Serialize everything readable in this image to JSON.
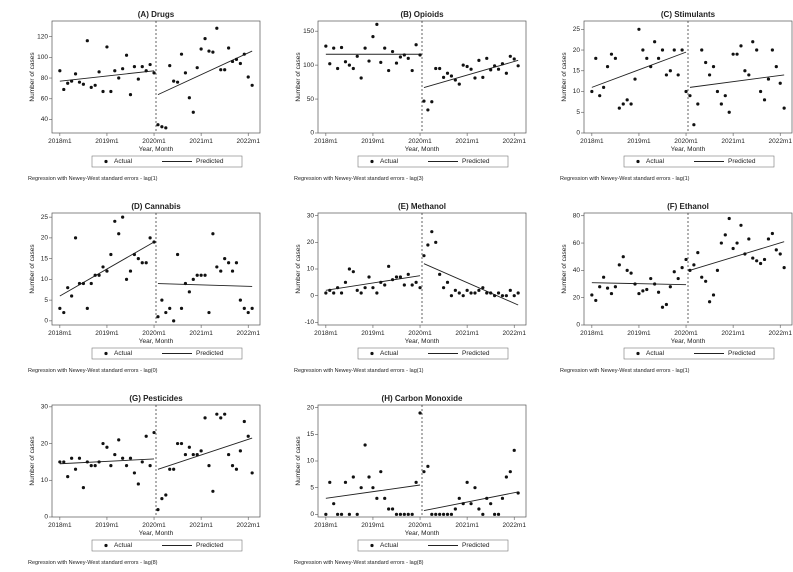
{
  "chart_data": [
    {
      "type": "scatter",
      "title": "(A) Drugs",
      "xlabel": "Year, Month",
      "ylabel": "Number of cases",
      "ylim": [
        27,
        135
      ],
      "yticks": [
        40,
        60,
        80,
        100,
        120
      ],
      "xticks": [
        "2018m1",
        "2019m1",
        "2020m1",
        "2021m1",
        "2022m1"
      ],
      "interruption_month": 25,
      "legend": {
        "actual": "Actual",
        "predicted": "Predicted"
      },
      "note": "Regression with Newey-West standard errors - lag(1)",
      "series": [
        {
          "name": "Actual",
          "values": [
            87,
            69,
            75,
            77,
            84,
            76,
            74,
            116,
            71,
            73,
            86,
            67,
            110,
            67,
            87,
            80,
            89,
            102,
            64,
            91,
            79,
            91,
            87,
            93,
            85,
            35,
            33,
            32,
            92,
            77,
            76,
            103,
            85,
            61,
            47,
            90,
            108,
            118,
            106,
            105,
            128,
            88,
            88,
            109,
            96,
            98,
            94,
            103,
            81,
            73
          ]
        },
        {
          "name": "Predicted",
          "segments": [
            {
              "x": [
                0,
                24
              ],
              "y": [
                77,
                87
              ]
            },
            {
              "x": [
                25,
                49
              ],
              "y": [
                64,
                106
              ]
            }
          ]
        }
      ]
    },
    {
      "type": "scatter",
      "title": "(B) Opioids",
      "xlabel": "Year, Month",
      "ylabel": "Number of cases",
      "ylim": [
        0,
        165
      ],
      "yticks": [
        0,
        50,
        100,
        150
      ],
      "xticks": [
        "2018m1",
        "2019m1",
        "2020m1",
        "2021m1",
        "2022m1"
      ],
      "interruption_month": 25,
      "legend": {
        "actual": "Actual",
        "predicted": "Predicted"
      },
      "note": "Regression with Newey-West standard errors - lag(3)",
      "series": [
        {
          "name": "Actual",
          "values": [
            128,
            102,
            125,
            95,
            126,
            105,
            100,
            95,
            113,
            81,
            125,
            106,
            142,
            160,
            104,
            125,
            92,
            120,
            103,
            112,
            115,
            110,
            92,
            130,
            115,
            47,
            34,
            46,
            95,
            95,
            82,
            88,
            84,
            78,
            72,
            100,
            98,
            94,
            81,
            107,
            82,
            110,
            93,
            99,
            94,
            102,
            88,
            113,
            109,
            99
          ]
        },
        {
          "name": "Predicted",
          "segments": [
            {
              "x": [
                0,
                24
              ],
              "y": [
                116,
                116
              ]
            },
            {
              "x": [
                25,
                49
              ],
              "y": [
                67,
                107
              ]
            }
          ]
        }
      ]
    },
    {
      "type": "scatter",
      "title": "(C) Stimulants",
      "xlabel": "Year, Month",
      "ylabel": "Number of cases",
      "ylim": [
        0,
        27
      ],
      "yticks": [
        0,
        5,
        10,
        15,
        20,
        25
      ],
      "xticks": [
        "2018m1",
        "2019m1",
        "2020m1",
        "2021m1",
        "2022m1"
      ],
      "interruption_month": 25,
      "legend": {
        "actual": "Actual",
        "predicted": "Predicted"
      },
      "note": "Regression with Newey-West standard errors - lag(1)",
      "series": [
        {
          "name": "Actual",
          "values": [
            10,
            18,
            9,
            11,
            16,
            19,
            18,
            6,
            7,
            8,
            7,
            13,
            25,
            20,
            18,
            16,
            22,
            18,
            20,
            14,
            15,
            20,
            14,
            20,
            10,
            9,
            2,
            7,
            20,
            17,
            14,
            16,
            10,
            7,
            9,
            5,
            19,
            19,
            21,
            15,
            14,
            22,
            20,
            10,
            8,
            13,
            20,
            16,
            12,
            6
          ]
        },
        {
          "name": "Predicted",
          "segments": [
            {
              "x": [
                0,
                24
              ],
              "y": [
                11,
                19.5
              ]
            },
            {
              "x": [
                25,
                49
              ],
              "y": [
                11,
                14
              ]
            }
          ]
        }
      ]
    },
    {
      "type": "scatter",
      "title": "(D) Cannabis",
      "xlabel": "Year, Month",
      "ylabel": "Number of cases",
      "ylim": [
        -1,
        26
      ],
      "yticks": [
        0,
        5,
        10,
        15,
        20,
        25
      ],
      "xticks": [
        "2018m1",
        "2019m1",
        "2020m1",
        "2021m1",
        "2022m1"
      ],
      "interruption_month": 25,
      "legend": {
        "actual": "Actual",
        "predicted": "Predicted"
      },
      "note": "Regression with Newey-West standard errors - lag(0)",
      "series": [
        {
          "name": "Actual",
          "values": [
            3,
            2,
            8,
            6,
            20,
            9,
            9,
            3,
            9,
            11,
            11,
            13,
            12,
            16,
            24,
            21,
            25,
            10,
            12,
            16,
            15,
            14,
            14,
            20,
            19,
            1,
            5,
            2,
            3,
            0,
            16,
            3,
            9,
            7,
            10,
            11,
            11,
            11,
            2,
            21,
            13,
            12,
            15,
            14,
            12,
            14,
            5,
            3,
            2,
            3
          ]
        },
        {
          "name": "Predicted",
          "segments": [
            {
              "x": [
                0,
                24
              ],
              "y": [
                6,
                19
              ]
            },
            {
              "x": [
                25,
                49
              ],
              "y": [
                9,
                8.3
              ]
            }
          ]
        }
      ]
    },
    {
      "type": "scatter",
      "title": "(E) Methanol",
      "xlabel": "Year, Month",
      "ylabel": "Number of cases",
      "ylim": [
        -11,
        31
      ],
      "yticks": [
        -10,
        0,
        10,
        20,
        30
      ],
      "xticks": [
        "2018m1",
        "2019m1",
        "2020m1",
        "2021m1",
        "2022m1"
      ],
      "interruption_month": 25,
      "legend": {
        "actual": "Actual",
        "predicted": "Predicted"
      },
      "note": "Regression with Newey-West standard errors - lag(1)",
      "series": [
        {
          "name": "Actual",
          "values": [
            1,
            2,
            1,
            3,
            1,
            5,
            10,
            9,
            2,
            1,
            3,
            7,
            3,
            1,
            5,
            4,
            11,
            6,
            7,
            7,
            4,
            8,
            4,
            5,
            3,
            15,
            19,
            24,
            20,
            8,
            3,
            5,
            0,
            2,
            1,
            0,
            2,
            1,
            1,
            2,
            3,
            1,
            1,
            0,
            1,
            0,
            0,
            2,
            0,
            1
          ]
        },
        {
          "name": "Predicted",
          "segments": [
            {
              "x": [
                0,
                24
              ],
              "y": [
                2,
                7.5
              ]
            },
            {
              "x": [
                25,
                49
              ],
              "y": [
                12,
                -3.5
              ]
            }
          ]
        }
      ]
    },
    {
      "type": "scatter",
      "title": "(F) Ethanol",
      "xlabel": "Year, Month",
      "ylabel": "Number of cases",
      "ylim": [
        0,
        82
      ],
      "yticks": [
        0,
        20,
        40,
        60,
        80
      ],
      "xticks": [
        "2018m1",
        "2019m1",
        "2020m1",
        "2021m1",
        "2022m1"
      ],
      "interruption_month": 25,
      "legend": {
        "actual": "Actual",
        "predicted": "Predicted"
      },
      "note": "Regression with Newey-West standard errors - lag(1)",
      "series": [
        {
          "name": "Actual",
          "values": [
            22,
            18,
            28,
            35,
            27,
            23,
            28,
            44,
            50,
            40,
            38,
            30,
            23,
            25,
            26,
            34,
            30,
            24,
            13,
            15,
            28,
            39,
            34,
            42,
            48,
            40,
            44,
            53,
            35,
            32,
            17,
            22,
            40,
            60,
            66,
            78,
            56,
            60,
            73,
            52,
            63,
            49,
            47,
            45,
            48,
            63,
            67,
            55,
            52,
            42
          ]
        },
        {
          "name": "Predicted",
          "segments": [
            {
              "x": [
                0,
                24
              ],
              "y": [
                31,
                29.5
              ]
            },
            {
              "x": [
                25,
                49
              ],
              "y": [
                40,
                61
              ]
            }
          ]
        }
      ]
    },
    {
      "type": "scatter",
      "title": "(G) Pesticides",
      "xlabel": "Year, Month",
      "ylabel": "Number of cases",
      "ylim": [
        0,
        30.5
      ],
      "yticks": [
        0,
        10,
        20,
        30
      ],
      "xticks": [
        "2018m1",
        "2019m1",
        "2020m1",
        "2021m1",
        "2022m1"
      ],
      "interruption_month": 25,
      "legend": {
        "actual": "Actual",
        "predicted": "Predicted"
      },
      "note": "Regression with Newey-West standard errors - lag(8)",
      "series": [
        {
          "name": "Actual",
          "values": [
            15,
            15,
            11,
            16,
            13,
            16,
            8,
            15,
            14,
            14,
            15,
            20,
            19,
            14,
            17,
            21,
            16,
            14,
            16,
            12,
            9,
            15,
            22,
            14,
            23,
            2,
            5,
            6,
            13,
            13,
            20,
            20,
            17,
            19,
            17,
            17,
            18,
            27,
            14,
            7,
            28,
            27,
            28,
            17,
            14,
            13,
            18,
            26,
            22,
            12
          ]
        },
        {
          "name": "Predicted",
          "segments": [
            {
              "x": [
                0,
                24
              ],
              "y": [
                14.5,
                15.8
              ]
            },
            {
              "x": [
                25,
                49
              ],
              "y": [
                13,
                21.5
              ]
            }
          ]
        }
      ]
    },
    {
      "type": "scatter",
      "title": "(H) Carbon Monoxide",
      "xlabel": "Year, Month",
      "ylabel": "Number of cases",
      "ylim": [
        -0.5,
        20.5
      ],
      "yticks": [
        0,
        5,
        10,
        15,
        20
      ],
      "xticks": [
        "2018m1",
        "2019m1",
        "2020m1",
        "2021m1",
        "2022m1"
      ],
      "interruption_month": 25,
      "legend": {
        "actual": "Actual",
        "predicted": "Predicted"
      },
      "note": "Regression with Newey-West standard errors - lag(8)",
      "series": [
        {
          "name": "Actual",
          "values": [
            0,
            6,
            2,
            0,
            0,
            6,
            0,
            7,
            0,
            5,
            13,
            7,
            5,
            3,
            8,
            3,
            1,
            1,
            0,
            0,
            0,
            0,
            0,
            6,
            19,
            8,
            9,
            0,
            0,
            0,
            0,
            0,
            0,
            1,
            3,
            2,
            6,
            2,
            5,
            1,
            0,
            3,
            2,
            0,
            0,
            3,
            7,
            8,
            12,
            4
          ]
        },
        {
          "name": "Predicted",
          "segments": [
            {
              "x": [
                0,
                24
              ],
              "y": [
                3,
                5.5
              ]
            },
            {
              "x": [
                25,
                49
              ],
              "y": [
                0.7,
                4.2
              ]
            }
          ]
        }
      ]
    }
  ]
}
